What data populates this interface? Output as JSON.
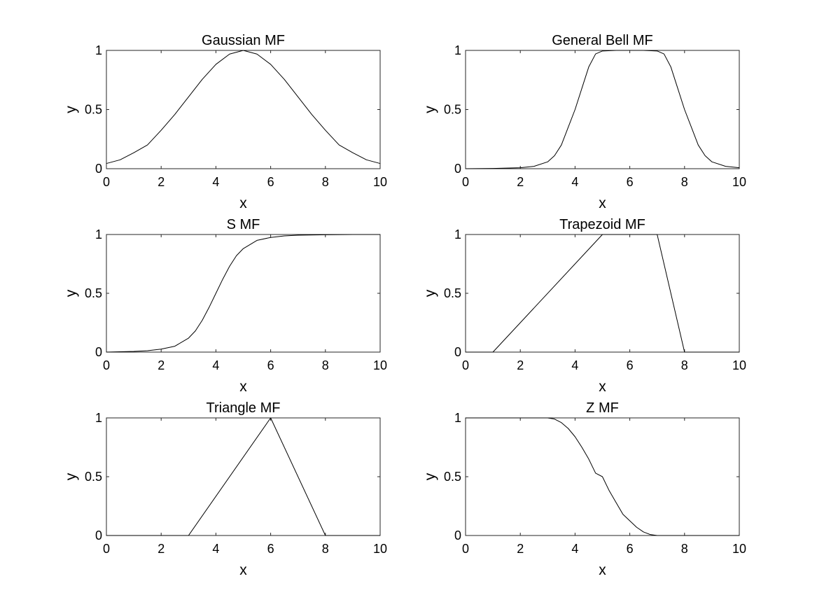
{
  "figure": {
    "background": "#ffffff",
    "line_color": "#000000"
  },
  "chart_data": [
    {
      "type": "line",
      "title": "Gaussian MF",
      "xlabel": "x",
      "ylabel": "y",
      "xlim": [
        0,
        10
      ],
      "ylim": [
        0,
        1
      ],
      "xticks": [
        0,
        2,
        4,
        6,
        8,
        10
      ],
      "xtick_labels": [
        "0",
        "2",
        "4",
        "6",
        "8",
        "10"
      ],
      "yticks": [
        0,
        0.5,
        1
      ],
      "ytick_labels": [
        "0",
        "0.5",
        "1"
      ],
      "grid": false,
      "series": [
        {
          "x": [
            0,
            0.5,
            1,
            1.5,
            2,
            2.5,
            3,
            3.5,
            4,
            4.5,
            5,
            5.5,
            6,
            6.5,
            7,
            7.5,
            8,
            8.5,
            9,
            9.5,
            10
          ],
          "y": [
            0.044,
            0.075,
            0.135,
            0.201,
            0.325,
            0.459,
            0.607,
            0.755,
            0.882,
            0.969,
            1.0,
            0.969,
            0.882,
            0.755,
            0.607,
            0.459,
            0.325,
            0.201,
            0.135,
            0.075,
            0.044
          ]
        }
      ]
    },
    {
      "type": "line",
      "title": "General Bell MF",
      "xlabel": "x",
      "ylabel": "y",
      "xlim": [
        0,
        10
      ],
      "ylim": [
        0,
        1
      ],
      "xticks": [
        0,
        2,
        4,
        6,
        8,
        10
      ],
      "xtick_labels": [
        "0",
        "2",
        "4",
        "6",
        "8",
        "10"
      ],
      "yticks": [
        0,
        0.5,
        1
      ],
      "ytick_labels": [
        "0",
        "0.5",
        "1"
      ],
      "grid": false,
      "series": [
        {
          "x": [
            0,
            1,
            2,
            2.5,
            3,
            3.25,
            3.5,
            3.75,
            4,
            4.25,
            4.5,
            4.75,
            5,
            5.5,
            6,
            6.5,
            7,
            7.25,
            7.5,
            7.75,
            8,
            8.25,
            8.5,
            8.75,
            9,
            9.5,
            10
          ],
          "y": [
            0.0,
            0.002,
            0.008,
            0.02,
            0.058,
            0.11,
            0.2,
            0.35,
            0.5,
            0.68,
            0.86,
            0.97,
            0.995,
            1.0,
            1.0,
            1.0,
            0.995,
            0.97,
            0.86,
            0.68,
            0.5,
            0.35,
            0.2,
            0.11,
            0.058,
            0.02,
            0.008
          ]
        }
      ]
    },
    {
      "type": "line",
      "title": "S MF",
      "xlabel": "x",
      "ylabel": "y",
      "xlim": [
        0,
        10
      ],
      "ylim": [
        0,
        1
      ],
      "xticks": [
        0,
        2,
        4,
        6,
        8,
        10
      ],
      "xtick_labels": [
        "0",
        "2",
        "4",
        "6",
        "8",
        "10"
      ],
      "yticks": [
        0,
        0.5,
        1
      ],
      "ytick_labels": [
        "0",
        "0.5",
        "1"
      ],
      "grid": false,
      "series": [
        {
          "x": [
            0,
            0.5,
            1,
            1.5,
            2,
            2.5,
            3,
            3.25,
            3.5,
            3.75,
            4,
            4.25,
            4.5,
            4.75,
            5,
            5.5,
            6,
            6.5,
            7,
            8,
            9,
            10
          ],
          "y": [
            0.0,
            0.003,
            0.006,
            0.012,
            0.025,
            0.05,
            0.119,
            0.18,
            0.27,
            0.38,
            0.5,
            0.62,
            0.73,
            0.82,
            0.88,
            0.95,
            0.975,
            0.988,
            0.994,
            0.998,
            1.0,
            1.0
          ]
        }
      ]
    },
    {
      "type": "line",
      "title": "Trapezoid MF",
      "xlabel": "x",
      "ylabel": "y",
      "xlim": [
        0,
        10
      ],
      "ylim": [
        0,
        1
      ],
      "xticks": [
        0,
        2,
        4,
        6,
        8,
        10
      ],
      "xtick_labels": [
        "0",
        "2",
        "4",
        "6",
        "8",
        "10"
      ],
      "yticks": [
        0,
        0.5,
        1
      ],
      "ytick_labels": [
        "0",
        "0.5",
        "1"
      ],
      "grid": false,
      "series": [
        {
          "x": [
            0,
            1,
            5,
            7,
            8,
            10
          ],
          "y": [
            0,
            0,
            1,
            1,
            0,
            0
          ]
        }
      ]
    },
    {
      "type": "line",
      "title": "Triangle MF",
      "xlabel": "x",
      "ylabel": "y",
      "xlim": [
        0,
        10
      ],
      "ylim": [
        0,
        1
      ],
      "xticks": [
        0,
        2,
        4,
        6,
        8,
        10
      ],
      "xtick_labels": [
        "0",
        "2",
        "4",
        "6",
        "8",
        "10"
      ],
      "yticks": [
        0,
        0.5,
        1
      ],
      "ytick_labels": [
        "0",
        "0.5",
        "1"
      ],
      "grid": false,
      "series": [
        {
          "x": [
            0,
            3,
            6,
            8,
            10
          ],
          "y": [
            0,
            0,
            1,
            0,
            0
          ]
        }
      ]
    },
    {
      "type": "line",
      "title": "Z MF",
      "xlabel": "x",
      "ylabel": "y",
      "xlim": [
        0,
        10
      ],
      "ylim": [
        0,
        1
      ],
      "xticks": [
        0,
        2,
        4,
        6,
        8,
        10
      ],
      "xtick_labels": [
        "0",
        "2",
        "4",
        "6",
        "8",
        "10"
      ],
      "yticks": [
        0,
        0.5,
        1
      ],
      "ytick_labels": [
        "0",
        "0.5",
        "1"
      ],
      "grid": false,
      "series": [
        {
          "x": [
            0,
            1,
            2,
            3,
            3.25,
            3.5,
            3.75,
            4,
            4.25,
            4.5,
            4.75,
            5,
            5.25,
            5.5,
            5.75,
            6,
            6.25,
            6.5,
            6.75,
            7,
            8,
            9,
            10
          ],
          "y": [
            1,
            1,
            1,
            1,
            0.99,
            0.96,
            0.91,
            0.84,
            0.75,
            0.65,
            0.53,
            0.5,
            0.38,
            0.28,
            0.18,
            0.125,
            0.07,
            0.03,
            0.008,
            0,
            0,
            0,
            0
          ]
        }
      ]
    }
  ]
}
